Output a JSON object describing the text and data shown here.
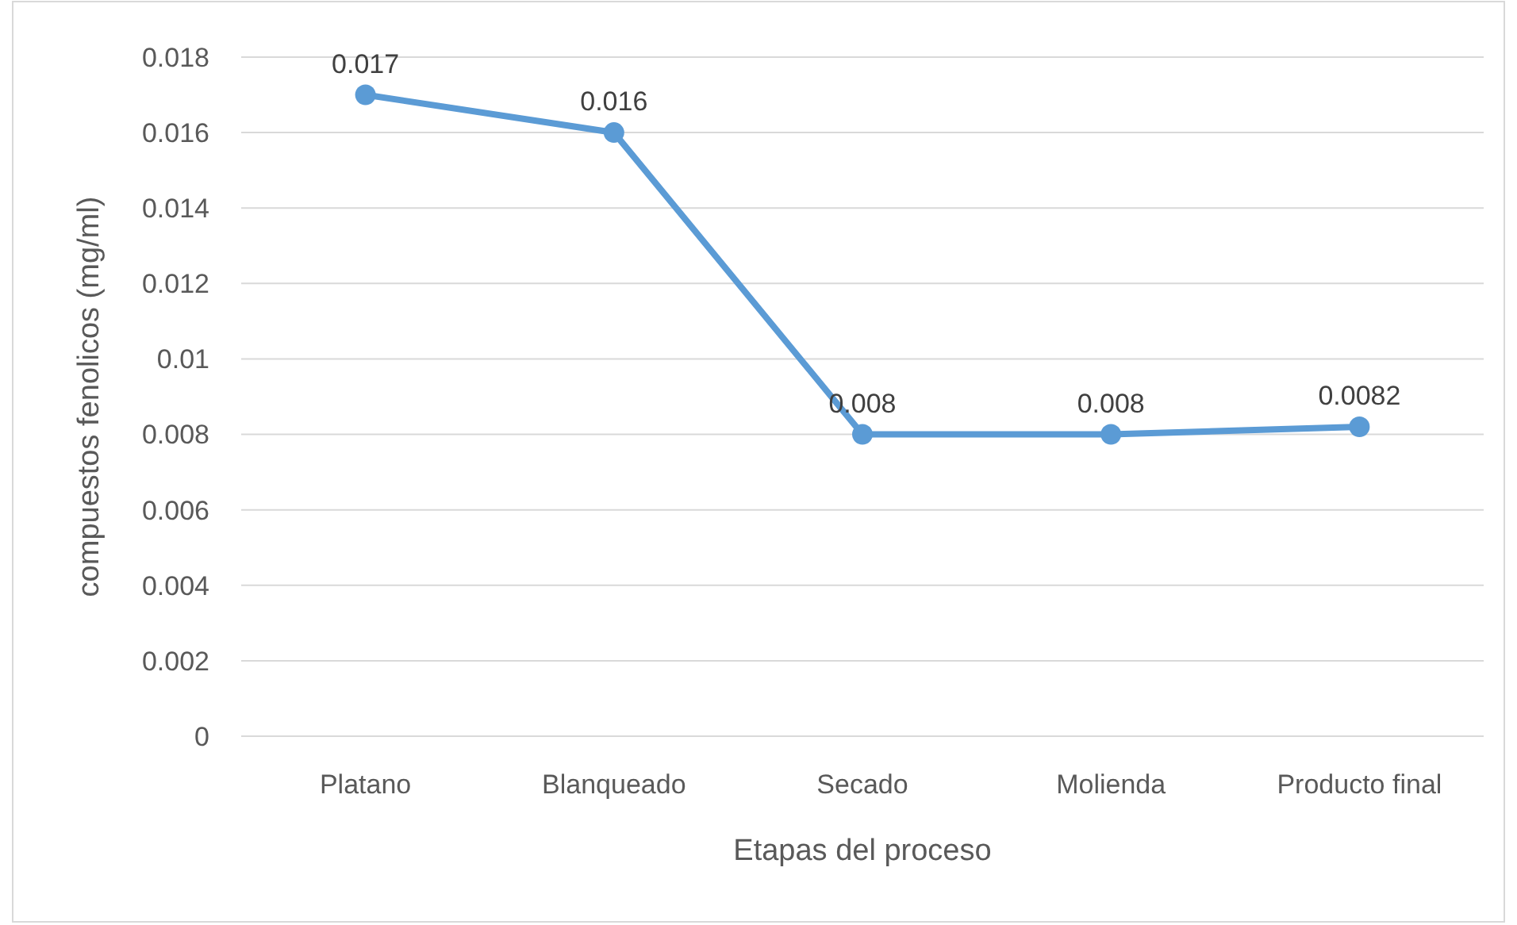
{
  "chart_data": {
    "type": "line",
    "xlabel": "Etapas del proceso",
    "ylabel": "compuestos fenolicos (mg/ml)",
    "categories": [
      "Platano",
      "Blanqueado",
      "Secado",
      "Molienda",
      "Producto final"
    ],
    "series": [
      {
        "color": "#5b9bd5",
        "values": [
          0.017,
          0.016,
          0.008,
          0.008,
          0.0082
        ]
      }
    ],
    "ylim": [
      0,
      0.018
    ],
    "yticks": [
      0,
      0.002,
      0.004,
      0.006,
      0.008,
      0.01,
      0.012,
      0.014,
      0.016,
      0.018
    ],
    "grid": "y",
    "data_labels": true,
    "marker": "circle",
    "line_style": "solid"
  }
}
